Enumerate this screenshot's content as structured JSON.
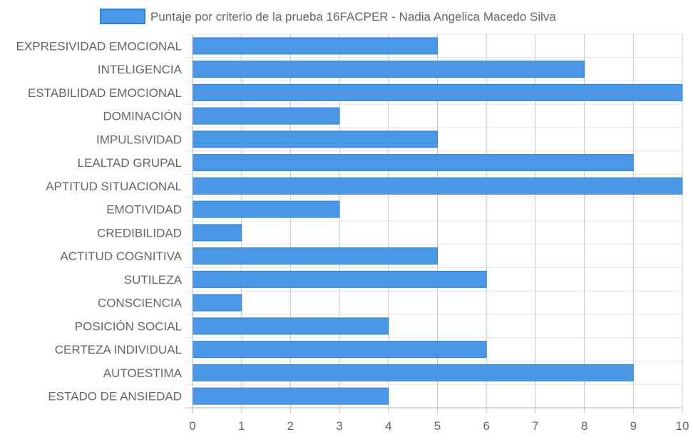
{
  "chart_data": {
    "type": "bar",
    "orientation": "horizontal",
    "legend": {
      "label": "Puntaje por criterio de la prueba 16FACPER - Nadia Angelica Macedo Silva",
      "position": "top"
    },
    "categories": [
      "EXPRESIVIDAD EMOCIONAL",
      "INTELIGENCIA",
      "ESTABILIDAD EMOCIONAL",
      "DOMINACIÓN",
      "IMPULSIVIDAD",
      "LEALTAD GRUPAL",
      "APTITUD SITUACIONAL",
      "EMOTIVIDAD",
      "CREDIBILIDAD",
      "ACTITUD COGNITIVA",
      "SUTILEZA",
      "CONSCIENCIA",
      "POSICIÓN SOCIAL",
      "CERTEZA INDIVIDUAL",
      "AUTOESTIMA",
      "ESTADO DE ANSIEDAD"
    ],
    "series": [
      {
        "name": "Puntaje por criterio de la prueba 16FACPER - Nadia Angelica Macedo Silva",
        "values": [
          5,
          8,
          10,
          3,
          5,
          9,
          10,
          3,
          1,
          5,
          6,
          1,
          4,
          6,
          9,
          4
        ]
      }
    ],
    "xlim": [
      0,
      10
    ],
    "x_ticks": [
      "0",
      "1",
      "2",
      "3",
      "4",
      "5",
      "6",
      "7",
      "8",
      "9",
      "10"
    ],
    "grid": true,
    "colors": {
      "bar_fill": "#4a97e8",
      "bar_stroke": "#2f80d9",
      "grid": "#e4e4e4",
      "axis": "#b9b9b9",
      "text": "#666666"
    }
  }
}
